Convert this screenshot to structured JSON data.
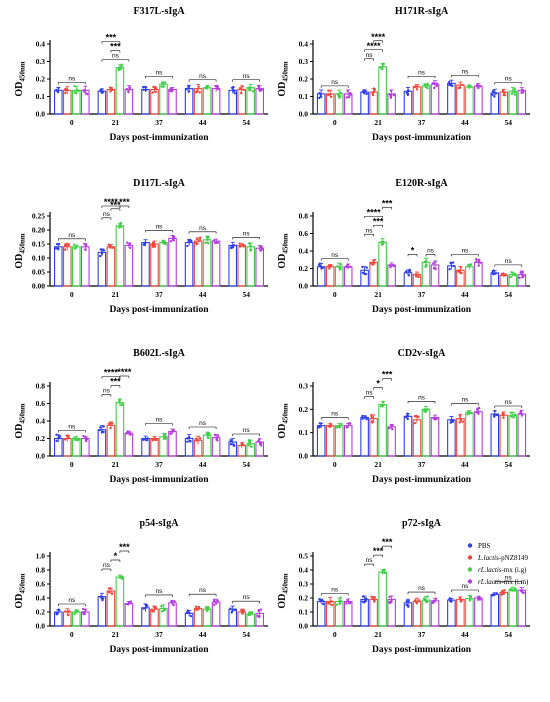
{
  "legend": {
    "items": [
      {
        "label": "PBS",
        "italic_prefix": ""
      },
      {
        "label": "-pNZ8149",
        "italic_prefix": "L.lactis"
      },
      {
        "label": "-mx (i.g)",
        "italic_prefix": "rL.lactis"
      },
      {
        "label": "-mx (i.m)",
        "italic_prefix": "rL.lactis"
      }
    ]
  },
  "colors": {
    "PBS": "#2f3fe8",
    "L.lactis-pNZ8149": "#f0473c",
    "rL.lactis-mx (i.g)": "#3fcf46",
    "rL.lactis-mx (i.m)": "#b53de0"
  },
  "chart_data": [
    {
      "type": "bar",
      "title": "F317L-sIgA",
      "xlabel": "Days post-immunization",
      "ylabel": "OD450nm",
      "categories": [
        "0",
        "21",
        "37",
        "44",
        "54"
      ],
      "ylim": [
        0,
        0.4
      ],
      "yticks": [
        "0.0",
        "0.1",
        "0.2",
        "0.3",
        "0.4"
      ],
      "series": [
        {
          "name": "PBS",
          "values": [
            0.135,
            0.13,
            0.14,
            0.145,
            0.135
          ]
        },
        {
          "name": "L.lactis-pNZ8149",
          "values": [
            0.135,
            0.14,
            0.14,
            0.145,
            0.14
          ]
        },
        {
          "name": "rL.lactis-mx (i.g)",
          "values": [
            0.135,
            0.265,
            0.17,
            0.15,
            0.15
          ]
        },
        {
          "name": "rL.lactis-mx (i.m)",
          "values": [
            0.135,
            0.14,
            0.14,
            0.145,
            0.145
          ]
        }
      ],
      "annotations": [
        {
          "text": "ns",
          "group": "0"
        },
        {
          "text": "ns",
          "group": "21"
        },
        {
          "text": "***",
          "group": "21"
        },
        {
          "text": "***",
          "group": "21"
        },
        {
          "text": "ns",
          "group": "37"
        },
        {
          "text": "ns",
          "group": "44"
        },
        {
          "text": "ns",
          "group": "54"
        }
      ]
    },
    {
      "type": "bar",
      "title": "H171R-sIgA",
      "xlabel": "Days post-immunization",
      "ylabel": "OD450nm",
      "categories": [
        "0",
        "21",
        "37",
        "44",
        "54"
      ],
      "ylim": [
        0,
        0.4
      ],
      "yticks": [
        "0.0",
        "0.1",
        "0.2",
        "0.3",
        "0.4"
      ],
      "series": [
        {
          "name": "PBS",
          "values": [
            0.115,
            0.125,
            0.13,
            0.175,
            0.12
          ]
        },
        {
          "name": "L.lactis-pNZ8149",
          "values": [
            0.115,
            0.125,
            0.155,
            0.165,
            0.125
          ]
        },
        {
          "name": "rL.lactis-mx (i.g)",
          "values": [
            0.115,
            0.27,
            0.16,
            0.155,
            0.13
          ]
        },
        {
          "name": "rL.lactis-mx (i.m)",
          "values": [
            0.115,
            0.115,
            0.17,
            0.16,
            0.135
          ]
        }
      ],
      "annotations": [
        {
          "text": "ns",
          "group": "0"
        },
        {
          "text": "ns",
          "group": "21"
        },
        {
          "text": "****",
          "group": "21"
        },
        {
          "text": "****",
          "group": "21"
        },
        {
          "text": "ns",
          "group": "37"
        },
        {
          "text": "ns",
          "group": "44"
        },
        {
          "text": "ns",
          "group": "54"
        }
      ]
    },
    {
      "type": "bar",
      "title": "D117L-sIgA",
      "xlabel": "Days post-immunization",
      "ylabel": "OD450nm",
      "categories": [
        "0",
        "21",
        "37",
        "44",
        "54"
      ],
      "ylim": [
        0,
        0.25
      ],
      "yticks": [
        "0.00",
        "0.05",
        "0.10",
        "0.15",
        "0.20",
        "0.25"
      ],
      "series": [
        {
          "name": "PBS",
          "values": [
            0.14,
            0.12,
            0.155,
            0.155,
            0.145
          ]
        },
        {
          "name": "L.lactis-pNZ8149",
          "values": [
            0.14,
            0.14,
            0.15,
            0.16,
            0.145
          ]
        },
        {
          "name": "rL.lactis-mx (i.g)",
          "values": [
            0.14,
            0.215,
            0.155,
            0.165,
            0.14
          ]
        },
        {
          "name": "rL.lactis-mx (i.m)",
          "values": [
            0.14,
            0.145,
            0.17,
            0.16,
            0.135
          ]
        }
      ],
      "annotations": [
        {
          "text": "ns",
          "group": "0"
        },
        {
          "text": "ns",
          "group": "21"
        },
        {
          "text": "***",
          "group": "21"
        },
        {
          "text": "****",
          "group": "21"
        },
        {
          "text": "***",
          "group": "21"
        },
        {
          "text": "ns",
          "group": "37"
        },
        {
          "text": "ns",
          "group": "44"
        },
        {
          "text": "ns",
          "group": "54"
        }
      ]
    },
    {
      "type": "bar",
      "title": "E120R-sIgA",
      "xlabel": "Days post-immunization",
      "ylabel": "OD450nm",
      "categories": [
        "0",
        "21",
        "37",
        "44",
        "54"
      ],
      "ylim": [
        0,
        0.8
      ],
      "yticks": [
        "0.0",
        "0.2",
        "0.4",
        "0.6",
        "0.8"
      ],
      "series": [
        {
          "name": "PBS",
          "values": [
            0.22,
            0.18,
            0.15,
            0.23,
            0.15
          ]
        },
        {
          "name": "L.lactis-pNZ8149",
          "values": [
            0.22,
            0.27,
            0.13,
            0.18,
            0.12
          ]
        },
        {
          "name": "rL.lactis-mx (i.g)",
          "values": [
            0.22,
            0.5,
            0.27,
            0.22,
            0.13
          ]
        },
        {
          "name": "rL.lactis-mx (i.m)",
          "values": [
            0.22,
            0.24,
            0.24,
            0.27,
            0.13
          ]
        }
      ],
      "annotations": [
        {
          "text": "ns",
          "group": "0"
        },
        {
          "text": "ns",
          "group": "21"
        },
        {
          "text": "***",
          "group": "21"
        },
        {
          "text": "****",
          "group": "21"
        },
        {
          "text": "***",
          "group": "21"
        },
        {
          "text": "*",
          "group": "37"
        },
        {
          "text": "ns",
          "group": "37"
        },
        {
          "text": "ns",
          "group": "44"
        },
        {
          "text": "ns",
          "group": "54"
        }
      ]
    },
    {
      "type": "bar",
      "title": "B602L-sIgA",
      "xlabel": "Days post-immunization",
      "ylabel": "OD450nm",
      "categories": [
        "0",
        "21",
        "37",
        "44",
        "54"
      ],
      "ylim": [
        0,
        0.8
      ],
      "yticks": [
        "0.0",
        "0.2",
        "0.4",
        "0.6",
        "0.8"
      ],
      "series": [
        {
          "name": "PBS",
          "values": [
            0.2,
            0.3,
            0.2,
            0.2,
            0.16
          ]
        },
        {
          "name": "L.lactis-pNZ8149",
          "values": [
            0.2,
            0.35,
            0.2,
            0.18,
            0.12
          ]
        },
        {
          "name": "rL.lactis-mx (i.g)",
          "values": [
            0.2,
            0.61,
            0.22,
            0.24,
            0.14
          ]
        },
        {
          "name": "rL.lactis-mx (i.m)",
          "values": [
            0.2,
            0.26,
            0.28,
            0.21,
            0.16
          ]
        }
      ],
      "annotations": [
        {
          "text": "ns",
          "group": "0"
        },
        {
          "text": "ns",
          "group": "21"
        },
        {
          "text": "***",
          "group": "21"
        },
        {
          "text": "****",
          "group": "21"
        },
        {
          "text": "****",
          "group": "21"
        },
        {
          "text": "ns",
          "group": "37"
        },
        {
          "text": "ns",
          "group": "44"
        },
        {
          "text": "ns",
          "group": "54"
        }
      ]
    },
    {
      "type": "bar",
      "title": "CD2v-sIgA",
      "xlabel": "Days post-immunization",
      "ylabel": "OD450nm",
      "categories": [
        "0",
        "21",
        "37",
        "44",
        "54"
      ],
      "ylim": [
        0,
        0.3
      ],
      "yticks": [
        "0.0",
        "0.1",
        "0.2",
        "0.3"
      ],
      "series": [
        {
          "name": "PBS",
          "values": [
            0.13,
            0.165,
            0.17,
            0.155,
            0.18
          ]
        },
        {
          "name": "L.lactis-pNZ8149",
          "values": [
            0.13,
            0.16,
            0.155,
            0.16,
            0.175
          ]
        },
        {
          "name": "rL.lactis-mx (i.g)",
          "values": [
            0.13,
            0.22,
            0.2,
            0.185,
            0.175
          ]
        },
        {
          "name": "rL.lactis-mx (i.m)",
          "values": [
            0.13,
            0.125,
            0.165,
            0.19,
            0.18
          ]
        }
      ],
      "annotations": [
        {
          "text": "ns",
          "group": "0"
        },
        {
          "text": "ns",
          "group": "21"
        },
        {
          "text": "*",
          "group": "21"
        },
        {
          "text": "***",
          "group": "21"
        },
        {
          "text": "ns",
          "group": "37"
        },
        {
          "text": "ns",
          "group": "44"
        },
        {
          "text": "ns",
          "group": "54"
        }
      ]
    },
    {
      "type": "bar",
      "title": "p54-sIgA",
      "xlabel": "Days post-immunization",
      "ylabel": "OD450nm",
      "categories": [
        "0",
        "21",
        "37",
        "44",
        "54"
      ],
      "ylim": [
        0,
        1.0
      ],
      "yticks": [
        "0.0",
        "0.2",
        "0.4",
        "0.6",
        "0.8",
        "1.0"
      ],
      "series": [
        {
          "name": "PBS",
          "values": [
            0.2,
            0.42,
            0.26,
            0.18,
            0.24
          ]
        },
        {
          "name": "L.lactis-pNZ8149",
          "values": [
            0.2,
            0.5,
            0.24,
            0.25,
            0.2
          ]
        },
        {
          "name": "rL.lactis-mx (i.g)",
          "values": [
            0.2,
            0.7,
            0.25,
            0.24,
            0.17
          ]
        },
        {
          "name": "rL.lactis-mx (i.m)",
          "values": [
            0.2,
            0.32,
            0.33,
            0.34,
            0.18
          ]
        }
      ],
      "annotations": [
        {
          "text": "ns",
          "group": "0"
        },
        {
          "text": "ns",
          "group": "21"
        },
        {
          "text": "*",
          "group": "21"
        },
        {
          "text": "***",
          "group": "21"
        },
        {
          "text": "ns",
          "group": "37"
        },
        {
          "text": "ns",
          "group": "44"
        },
        {
          "text": "ns",
          "group": "54"
        }
      ]
    },
    {
      "type": "bar",
      "title": "p72-sIgA",
      "xlabel": "Days post-immunization",
      "ylabel": "OD450nm",
      "categories": [
        "0",
        "21",
        "37",
        "44",
        "54"
      ],
      "ylim": [
        0,
        0.5
      ],
      "yticks": [
        "0.0",
        "0.1",
        "0.2",
        "0.3",
        "0.4",
        "0.5"
      ],
      "series": [
        {
          "name": "PBS",
          "values": [
            0.175,
            0.19,
            0.165,
            0.185,
            0.225
          ]
        },
        {
          "name": "L.lactis-pNZ8149",
          "values": [
            0.175,
            0.19,
            0.175,
            0.19,
            0.24
          ]
        },
        {
          "name": "rL.lactis-mx (i.g)",
          "values": [
            0.175,
            0.385,
            0.185,
            0.195,
            0.26
          ]
        },
        {
          "name": "rL.lactis-mx (i.m)",
          "values": [
            0.175,
            0.19,
            0.18,
            0.2,
            0.255
          ]
        }
      ],
      "annotations": [
        {
          "text": "ns",
          "group": "0"
        },
        {
          "text": "ns",
          "group": "21"
        },
        {
          "text": "***",
          "group": "21"
        },
        {
          "text": "***",
          "group": "21"
        },
        {
          "text": "ns",
          "group": "37"
        },
        {
          "text": "ns",
          "group": "44"
        },
        {
          "text": "ns",
          "group": "54"
        }
      ]
    }
  ]
}
